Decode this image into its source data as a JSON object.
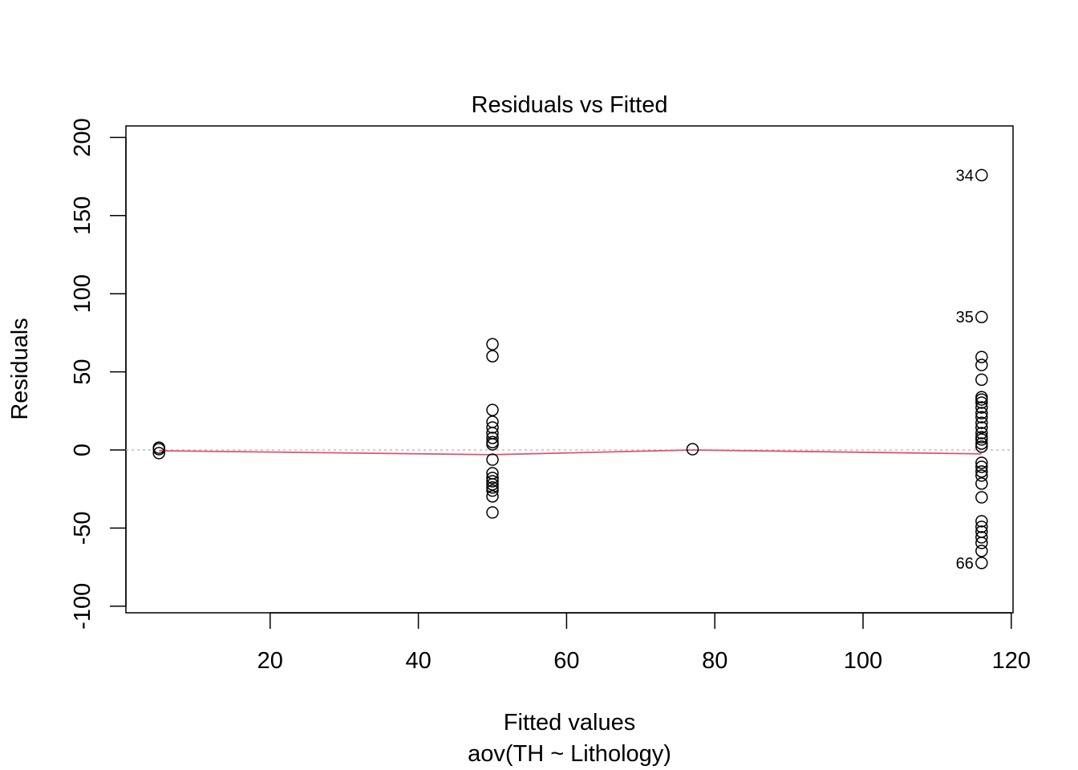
{
  "chart_data": {
    "type": "scatter",
    "title": "Residuals vs Fitted",
    "xlabel": "Fitted values",
    "subtitle": "aov(TH ~ Lithology)",
    "ylabel": "Residuals",
    "xlim": [
      0,
      120
    ],
    "ylim": [
      -100,
      200
    ],
    "xticks": [
      20,
      40,
      60,
      80,
      100,
      120
    ],
    "yticks": [
      -100,
      -50,
      0,
      50,
      100,
      150,
      200
    ],
    "grid": false,
    "colors": {
      "points": "#000000",
      "smoother": "#DF536B",
      "zero_line": "#BEBEBE"
    },
    "points": [
      {
        "x": 5,
        "y": 1.5
      },
      {
        "x": 5,
        "y": 0.5
      },
      {
        "x": 5,
        "y": -2
      },
      {
        "x": 50,
        "y": 67.7
      },
      {
        "x": 50,
        "y": 60
      },
      {
        "x": 50,
        "y": 25.6
      },
      {
        "x": 50,
        "y": 18
      },
      {
        "x": 50,
        "y": 14.4
      },
      {
        "x": 50,
        "y": 10.8
      },
      {
        "x": 50,
        "y": 7.7
      },
      {
        "x": 50,
        "y": 5
      },
      {
        "x": 50,
        "y": 3.6
      },
      {
        "x": 50,
        "y": -6.2
      },
      {
        "x": 50,
        "y": -14.9
      },
      {
        "x": 50,
        "y": -17.9
      },
      {
        "x": 50,
        "y": -20
      },
      {
        "x": 50,
        "y": -22
      },
      {
        "x": 50,
        "y": -24
      },
      {
        "x": 50,
        "y": -26
      },
      {
        "x": 50,
        "y": -29.7
      },
      {
        "x": 50,
        "y": -40
      },
      {
        "x": 77,
        "y": 0.5
      },
      {
        "x": 116,
        "y": 175.9,
        "label": "34"
      },
      {
        "x": 116,
        "y": 85.1,
        "label": "35"
      },
      {
        "x": 116,
        "y": 59.5
      },
      {
        "x": 116,
        "y": 54.4
      },
      {
        "x": 116,
        "y": 45
      },
      {
        "x": 116,
        "y": 33.8
      },
      {
        "x": 116,
        "y": 32.3
      },
      {
        "x": 116,
        "y": 30.3
      },
      {
        "x": 116,
        "y": 27.2
      },
      {
        "x": 116,
        "y": 23.6
      },
      {
        "x": 116,
        "y": 21
      },
      {
        "x": 116,
        "y": 17.4
      },
      {
        "x": 116,
        "y": 14.4
      },
      {
        "x": 116,
        "y": 10.8
      },
      {
        "x": 116,
        "y": 8.2
      },
      {
        "x": 116,
        "y": 6.7
      },
      {
        "x": 116,
        "y": 4.1
      },
      {
        "x": 116,
        "y": 2.1
      },
      {
        "x": 116,
        "y": -8.2
      },
      {
        "x": 116,
        "y": -10.8
      },
      {
        "x": 116,
        "y": -13.8
      },
      {
        "x": 116,
        "y": -16.4
      },
      {
        "x": 116,
        "y": -21.5
      },
      {
        "x": 116,
        "y": -30.3
      },
      {
        "x": 116,
        "y": -45.6
      },
      {
        "x": 116,
        "y": -49.2
      },
      {
        "x": 116,
        "y": -52.3
      },
      {
        "x": 116,
        "y": -55.9
      },
      {
        "x": 116,
        "y": -59.5
      },
      {
        "x": 116,
        "y": -64.6
      },
      {
        "x": 116,
        "y": -72.3,
        "label": "66"
      }
    ],
    "smoother": [
      {
        "x": 5,
        "y": -0.5
      },
      {
        "x": 50,
        "y": -3
      },
      {
        "x": 77,
        "y": 0
      },
      {
        "x": 116,
        "y": -2.5
      }
    ]
  }
}
